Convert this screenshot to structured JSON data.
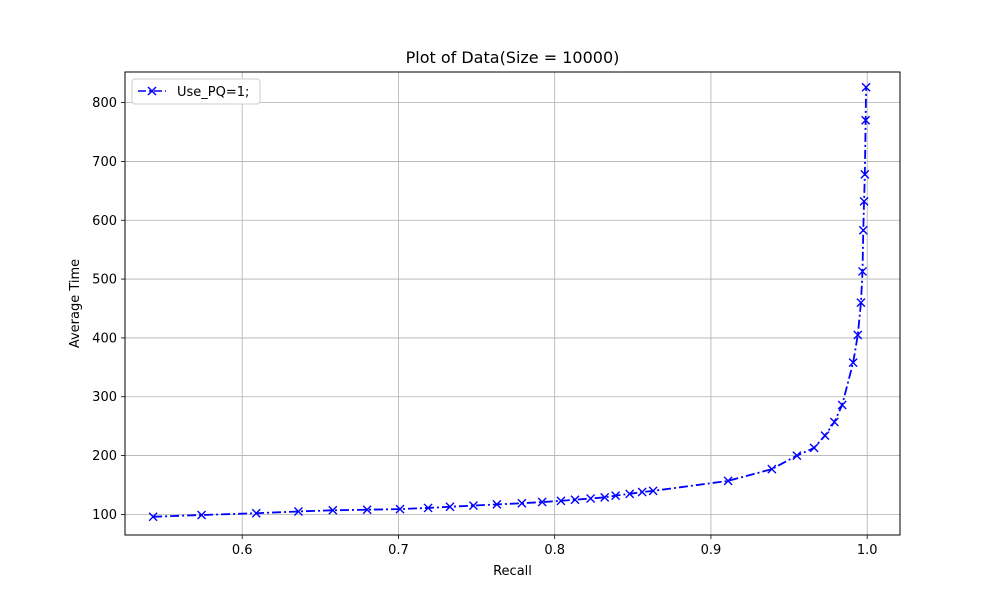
{
  "chart_data": {
    "type": "line",
    "title": "Plot of Data(Size = 10000)",
    "xlabel": "Recall",
    "ylabel": "Average Time",
    "xlim": [
      0.525,
      1.021
    ],
    "ylim": [
      65,
      852
    ],
    "xticks": [
      0.6,
      0.7,
      0.8,
      0.9,
      1.0
    ],
    "xtick_labels": [
      "0.6",
      "0.7",
      "0.8",
      "0.9",
      "1.0"
    ],
    "yticks": [
      100,
      200,
      300,
      400,
      500,
      600,
      700,
      800
    ],
    "ytick_labels": [
      "100",
      "200",
      "300",
      "400",
      "500",
      "600",
      "700",
      "800"
    ],
    "grid": true,
    "legend": {
      "position": "upper-left",
      "entries": [
        "Use_PQ=1;"
      ]
    },
    "series": [
      {
        "name": "Use_PQ=1;",
        "color": "#0000ff",
        "linestyle": "dash-dot",
        "marker": "x",
        "x": [
          0.543,
          0.574,
          0.609,
          0.636,
          0.658,
          0.68,
          0.701,
          0.719,
          0.733,
          0.748,
          0.763,
          0.779,
          0.792,
          0.804,
          0.813,
          0.823,
          0.832,
          0.839,
          0.848,
          0.856,
          0.863,
          0.911,
          0.939,
          0.955,
          0.966,
          0.973,
          0.979,
          0.984,
          0.991,
          0.994,
          0.996,
          0.997,
          0.9975,
          0.998,
          0.9985,
          0.999,
          0.9993
        ],
        "y": [
          96,
          99,
          102,
          105,
          107,
          108,
          109,
          111,
          113,
          115,
          117,
          119,
          121,
          123,
          125,
          127,
          129,
          132,
          135,
          138,
          140,
          157,
          177,
          200,
          213,
          234,
          257,
          286,
          358,
          405,
          460,
          513,
          583,
          632,
          678,
          770,
          826
        ]
      }
    ]
  }
}
